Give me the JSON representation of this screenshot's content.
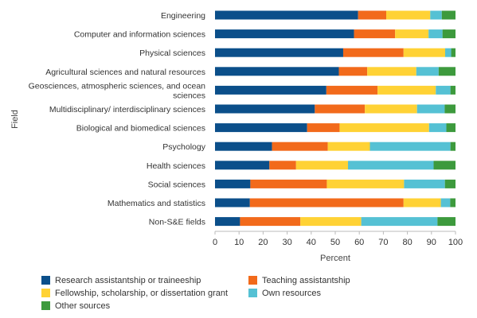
{
  "chart_data": {
    "type": "bar",
    "orientation": "horizontal",
    "stacked": true,
    "xlabel": "Percent",
    "ylabel": "Field",
    "xlim": [
      0,
      100
    ],
    "xticks": [
      "0",
      "10",
      "20",
      "30",
      "40",
      "50",
      "60",
      "70",
      "80",
      "90",
      "100"
    ],
    "grid": false,
    "legend_position": "bottom",
    "categories": [
      "Engineering",
      "Computer and information sciences",
      "Physical sciences",
      "Agricultural sciences and natural resources",
      "Geosciences, atmospheric sciences, and ocean sciences",
      "Multidisciplinary/ interdisciplinary sciences",
      "Biological and biomedical sciences",
      "Psychology",
      "Health sciences",
      "Social sciences",
      "Mathematics and statistics",
      "Non-S&E fields"
    ],
    "series": [
      {
        "name": "Research assistantship or traineeship",
        "color": "#0b4f8a",
        "values": [
          59.5,
          57.8,
          53.3,
          51.5,
          46.3,
          41.5,
          38.3,
          23.7,
          22.6,
          14.7,
          14.5,
          10.4
        ]
      },
      {
        "name": "Teaching assistantship",
        "color": "#f26a1b",
        "values": [
          11.7,
          17.1,
          25.1,
          11.8,
          21.3,
          20.8,
          13.5,
          23.2,
          11.1,
          31.8,
          63.9,
          25.1
        ]
      },
      {
        "name": "Fellowship, scholarship, or dissertation grant",
        "color": "#ffd235",
        "values": [
          18.3,
          13.9,
          17.3,
          20.4,
          24.2,
          21.7,
          37.2,
          17.5,
          21.6,
          32.1,
          15.5,
          25.3
        ]
      },
      {
        "name": "Own resources",
        "color": "#55c1d4",
        "values": [
          4.8,
          5.8,
          2.5,
          9.3,
          6.1,
          11.5,
          7.2,
          33.5,
          35.6,
          17.0,
          3.9,
          31.7
        ]
      },
      {
        "name": "Other sources",
        "color": "#3d9a3d",
        "values": [
          5.7,
          5.4,
          1.8,
          7.0,
          2.1,
          4.5,
          3.8,
          2.1,
          9.1,
          4.4,
          2.2,
          7.5
        ]
      }
    ]
  }
}
